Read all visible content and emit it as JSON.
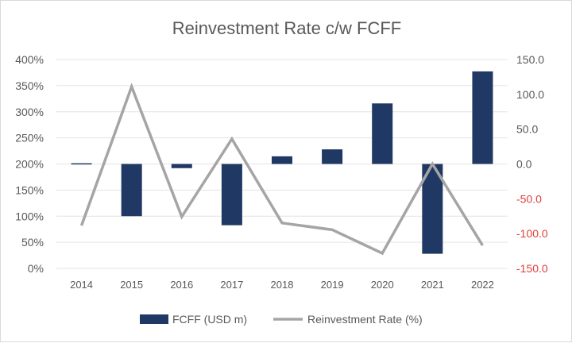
{
  "chart_data": {
    "type": "bar+line",
    "title": "Reinvestment Rate c/w FCFF",
    "categories": [
      "2014",
      "2015",
      "2016",
      "2017",
      "2018",
      "2019",
      "2020",
      "2021",
      "2022"
    ],
    "series": [
      {
        "name": "FCFF (USD m)",
        "type": "bar",
        "axis": "right",
        "color": "#203864",
        "values": [
          1,
          -75,
          -6,
          -88,
          11,
          21,
          87,
          -129,
          133
        ]
      },
      {
        "name": "Reinvestment Rate (%)",
        "type": "line",
        "axis": "left",
        "color": "#a5a5a5",
        "values": [
          82,
          348,
          99,
          248,
          87,
          74,
          29,
          200,
          44
        ]
      }
    ],
    "left_axis": {
      "ylim": [
        0,
        400
      ],
      "ticks": [
        "0%",
        "50%",
        "100%",
        "150%",
        "200%",
        "250%",
        "300%",
        "350%",
        "400%"
      ]
    },
    "right_axis": {
      "ylim": [
        -150,
        150
      ],
      "ticks": [
        "-150.0",
        "-100.0",
        "-50.0",
        "0.0",
        "50.0",
        "100.0",
        "150.0"
      ],
      "negative_color": "#e0403a"
    },
    "grid": true,
    "legend": "bottom"
  }
}
